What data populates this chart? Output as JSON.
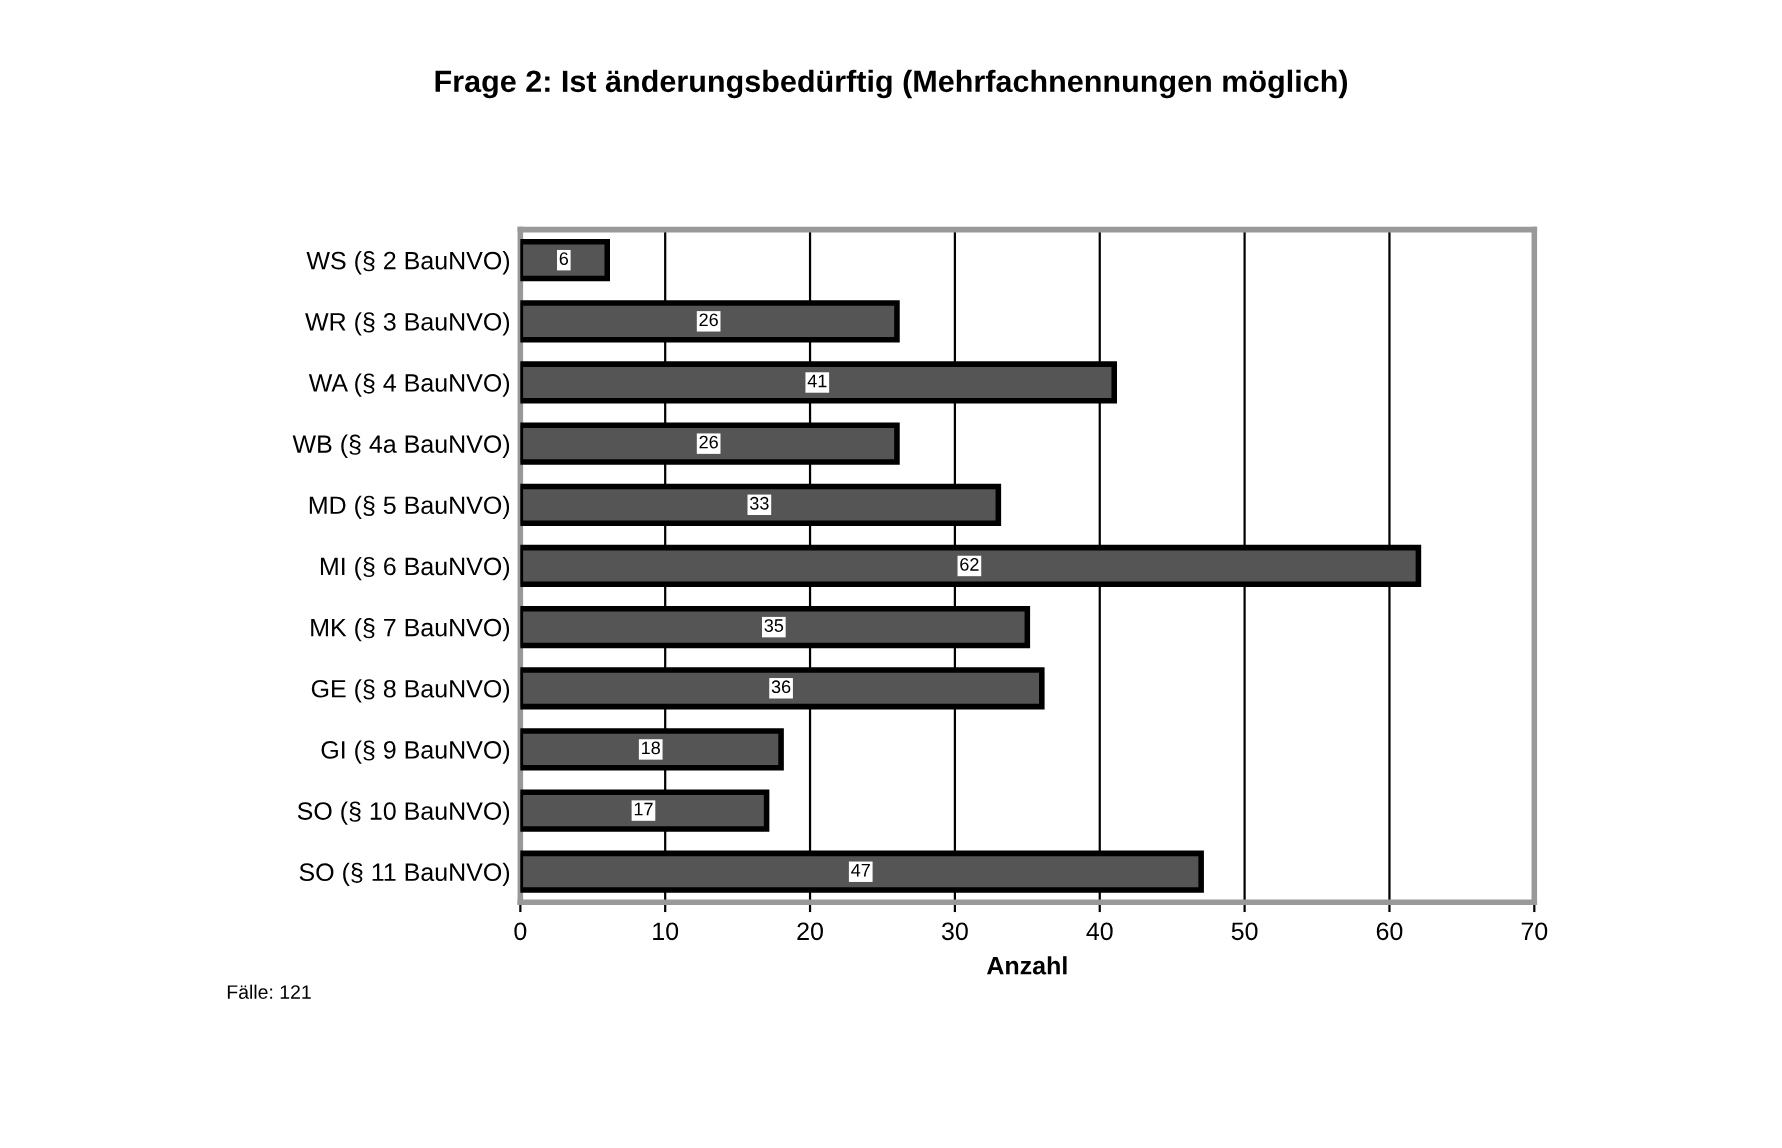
{
  "chart_data": {
    "type": "bar",
    "orientation": "horizontal",
    "title": "Frage 2: Ist änderungsbedürftig (Mehrfachnennungen möglich)",
    "xlabel": "Anzahl",
    "categories": [
      "WS (§ 2 BauNVO)",
      "WR (§ 3 BauNVO)",
      "WA (§ 4 BauNVO)",
      "WB (§ 4a BauNVO)",
      "MD (§ 5 BauNVO)",
      "MI (§ 6 BauNVO)",
      "MK (§ 7 BauNVO)",
      "GE (§ 8 BauNVO)",
      "GI (§ 9 BauNVO)",
      "SO (§ 10 BauNVO)",
      "SO (§ 11 BauNVO)"
    ],
    "values": [
      6,
      26,
      41,
      26,
      33,
      62,
      35,
      36,
      18,
      17,
      47
    ],
    "color": "#555555",
    "data_labels": true,
    "xlim": [
      0,
      70
    ],
    "xticks": [
      0,
      10,
      20,
      30,
      40,
      50,
      60,
      70
    ],
    "grid": "x",
    "legend": false,
    "annotations": [
      "Fälle: 121"
    ]
  }
}
